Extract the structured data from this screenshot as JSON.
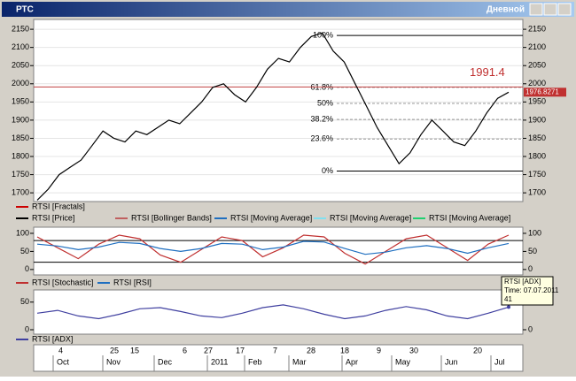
{
  "window": {
    "title": "РТС",
    "timeframe": "Дневной"
  },
  "price_panel": {
    "ylim": [
      1676,
      2177
    ],
    "yticks": [
      1700,
      1750,
      1800,
      1850,
      1900,
      1950,
      2000,
      2050,
      2100,
      2150
    ],
    "price": {
      "color": "#000000",
      "values": [
        1680,
        1710,
        1750,
        1770,
        1790,
        1830,
        1870,
        1850,
        1840,
        1870,
        1860,
        1880,
        1900,
        1890,
        1920,
        1950,
        1990,
        2000,
        1970,
        1950,
        1990,
        2040,
        2070,
        2060,
        2100,
        2130,
        2140,
        2090,
        2060,
        2000,
        1940,
        1880,
        1830,
        1780,
        1810,
        1860,
        1900,
        1870,
        1840,
        1830,
        1870,
        1920,
        1960,
        1976.8271
      ]
    },
    "fib_levels": [
      {
        "label": "100%",
        "value": 2133
      },
      {
        "label": "61.8%",
        "value": 1990
      },
      {
        "label": "50%",
        "value": 1946
      },
      {
        "label": "38.2%",
        "value": 1902
      },
      {
        "label": "23.6%",
        "value": 1848
      },
      {
        "label": "0%",
        "value": 1760
      }
    ],
    "annotation": 1991.4,
    "last_price": 1976.8271,
    "legend": [
      {
        "name": "RTSI [Fractals]",
        "color": "#cc0000"
      },
      {
        "name": "RTSI [Price]",
        "color": "#000000"
      },
      {
        "name": "RTSI [Bollinger Bands]",
        "color": "#c06060"
      },
      {
        "name": "RTSI [Moving Average]",
        "color": "#1f6fc0"
      },
      {
        "name": "RTSI [Moving Average]",
        "color": "#80e0f0"
      },
      {
        "name": "RTSI [Moving Average]",
        "color": "#20d070"
      }
    ]
  },
  "osc_panel": {
    "ylim": [
      -15,
      117
    ],
    "yticks": [
      0,
      50,
      100
    ],
    "levels": [
      20,
      80
    ],
    "series": [
      {
        "name": "RTSI [Stochastic]",
        "color": "#c03030",
        "values": [
          90,
          60,
          30,
          70,
          95,
          85,
          40,
          20,
          55,
          90,
          80,
          35,
          60,
          95,
          90,
          45,
          15,
          50,
          85,
          95,
          60,
          25,
          70,
          95
        ]
      },
      {
        "name": "RTSI [RSI]",
        "color": "#1f6fc0",
        "values": [
          70,
          65,
          55,
          62,
          75,
          72,
          58,
          50,
          58,
          72,
          70,
          55,
          62,
          78,
          76,
          58,
          42,
          48,
          60,
          66,
          58,
          45,
          60,
          72
        ]
      }
    ]
  },
  "adx_panel": {
    "ylim": [
      -8,
      72
    ],
    "yticks": [
      0,
      50
    ],
    "series": [
      {
        "name": "RTSI [ADX]",
        "color": "#4040a0",
        "values": [
          30,
          35,
          25,
          20,
          28,
          38,
          40,
          33,
          25,
          22,
          30,
          40,
          45,
          38,
          28,
          20,
          25,
          35,
          42,
          36,
          25,
          20,
          30,
          41
        ]
      }
    ],
    "tooltip": {
      "title": "RTSI [ADX]",
      "time": "Time: 07.07.2011",
      "value": 41
    }
  },
  "time_axis": {
    "days": [
      "4",
      "25",
      "15",
      "6",
      "27",
      "17",
      "7",
      "28",
      "18",
      "9",
      "30",
      "20"
    ],
    "months": [
      "Oct",
      "Nov",
      "Dec",
      "2011",
      "Feb",
      "Mar",
      "Apr",
      "May",
      "Jun",
      "Jul"
    ]
  }
}
